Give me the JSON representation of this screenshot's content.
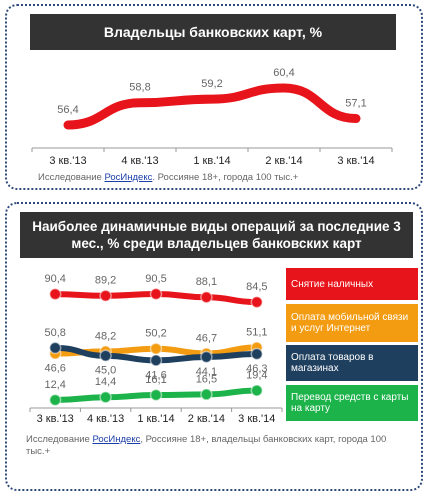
{
  "chart_data": [
    {
      "type": "line",
      "title": "Владельцы банковских карт, %",
      "categories": [
        "3 кв.'13",
        "4 кв.'13",
        "1 кв.'14",
        "2 кв.'14",
        "3 кв.'14"
      ],
      "values": [
        56.4,
        58.8,
        59.2,
        60.4,
        57.1
      ],
      "value_labels": [
        "56,4",
        "58,8",
        "59,2",
        "60,4",
        "57,1"
      ],
      "color": "#e8141b",
      "source": [
        "Исследование ",
        "РосИндекс",
        ".  Россияне 18+, города 100 тыс.+"
      ]
    },
    {
      "type": "line",
      "title": "Наиболее динамичные виды операций за последние 3 мес., % среди владельцев банковских карт",
      "categories": [
        "3 кв.'13",
        "4 кв.'13",
        "1 кв.'14",
        "2 кв.'14",
        "3 кв.'14"
      ],
      "series": [
        {
          "name": "Снятие наличных",
          "color": "#e8141b",
          "values": [
            90.4,
            89.2,
            90.5,
            88.1,
            84.5
          ],
          "value_labels": [
            "90,4",
            "89,2",
            "90,5",
            "88,1",
            "84,5"
          ]
        },
        {
          "name": "Оплата мобильной связи и услуг Интернет",
          "color": "#f39c12",
          "values": [
            46.6,
            48.2,
            50.2,
            46.7,
            51.1
          ],
          "value_labels": [
            "46,6",
            "48,2",
            "50,2",
            "46,7",
            "51,1"
          ]
        },
        {
          "name": "Оплата товаров в магазинах",
          "color": "#1f3f5f",
          "values": [
            50.8,
            45.0,
            41.6,
            44.1,
            46.3
          ],
          "value_labels": [
            "50,8",
            "45,0",
            "41,6",
            "44,1",
            "46,3"
          ]
        },
        {
          "name": "Перевод средств с карты на карту",
          "color": "#1db34b",
          "values": [
            12.4,
            14.4,
            16.1,
            16.5,
            19.4
          ],
          "value_labels": [
            "12,4",
            "14,4",
            "16,1",
            "16,5",
            "19,4"
          ]
        }
      ],
      "source": [
        "Исследование ",
        "РосИндекс",
        ",  Россияне 18+, владельцы банковских карт, города 100 тыс.+"
      ]
    }
  ]
}
